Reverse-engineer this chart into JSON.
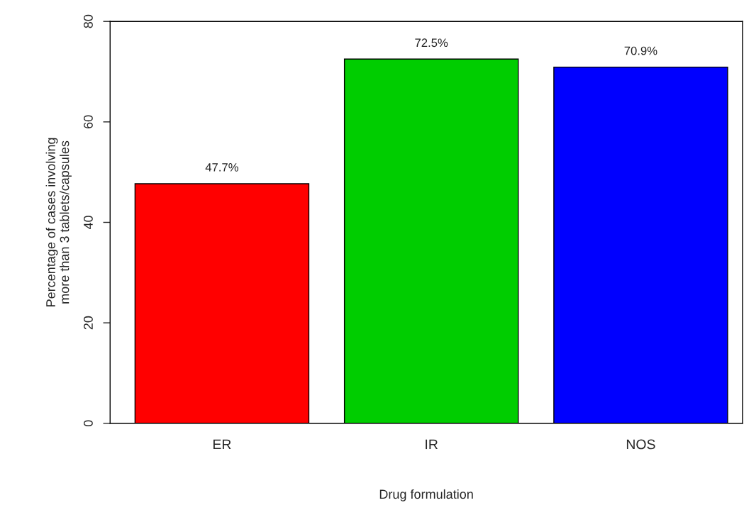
{
  "chart_data": {
    "type": "bar",
    "xlabel": "Drug formulation",
    "ylabel": "Percentage of cases involving\nmore than 3 tablets/capsules",
    "categories": [
      "ER",
      "IR",
      "NOS"
    ],
    "values": [
      47.7,
      72.5,
      70.9
    ],
    "colors": [
      "#ff0000",
      "#00cd00",
      "#0000ff"
    ],
    "value_labels": [
      "47.7%",
      "72.5%",
      "70.9%"
    ],
    "ylim": [
      0,
      80
    ],
    "yticks": [
      0,
      20,
      40,
      60,
      80
    ],
    "grid": false,
    "legend": false
  }
}
